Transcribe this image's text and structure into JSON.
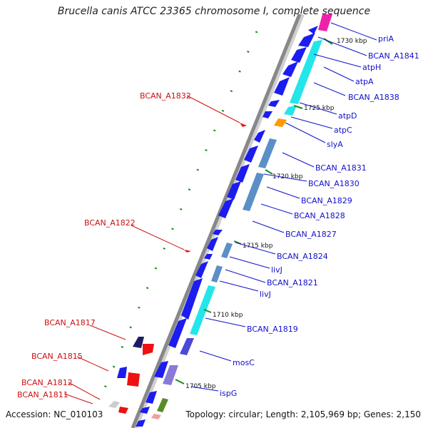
{
  "title": "Brucella canis ATCC 23365 chromosome I, complete sequence",
  "footer": {
    "accession": "Accession: NC_010103",
    "topology": "Topology: circular; Length: 2,105,969 bp; Genes: 2,150"
  },
  "colors": {
    "backbone": "#888888",
    "forward_gene": "#1c1cf0",
    "cds_cyan": "#22e6ea",
    "cds_steel": "#5b8fc7",
    "reverse_gene": "#ee1111",
    "tick": "#1a8a1a",
    "blue_label": "#1010cc",
    "red_label": "#cc1010"
  },
  "kbp_ticks": [
    "1730 kbp",
    "1725 kbp",
    "1720 kbp",
    "1715 kbp",
    "1710 kbp",
    "1705 kbp"
  ],
  "right_labels": [
    "priA",
    "BCAN_A1841",
    "atpH",
    "atpA",
    "BCAN_A1838",
    "atpD",
    "atpC",
    "slyA",
    "BCAN_A1831",
    "BCAN_A1830",
    "BCAN_A1829",
    "BCAN_A1828",
    "BCAN_A1827",
    "BCAN_A1824",
    "livJ",
    "BCAN_A1821",
    "livJ",
    "BCAN_A1819",
    "mosC",
    "ispG"
  ],
  "left_labels": [
    "BCAN_A1832",
    "BCAN_A1822",
    "BCAN_A1817",
    "BCAN_A1815",
    "BCAN_A1812",
    "BCAN_A1811"
  ]
}
